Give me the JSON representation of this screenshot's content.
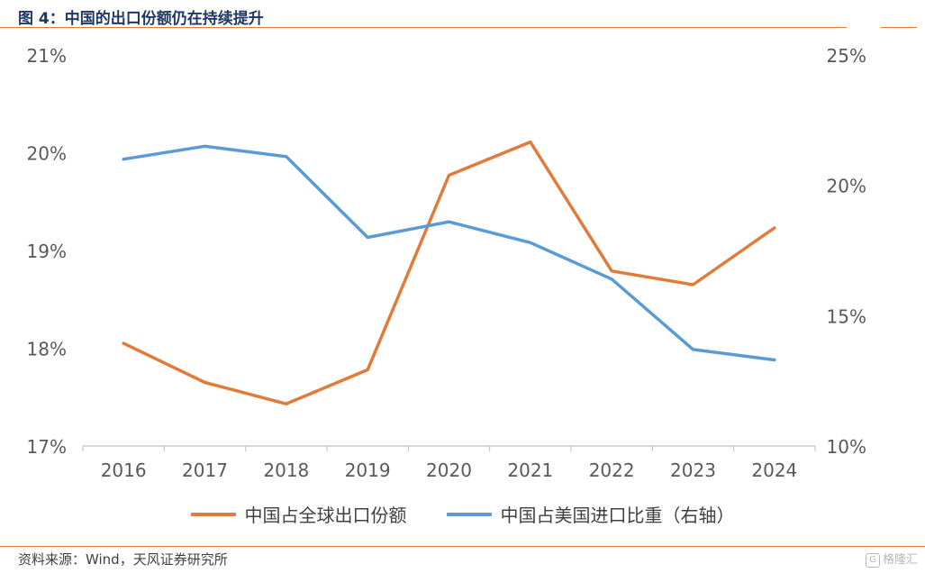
{
  "header": {
    "figure_title": "图 4：中国的出口份额仍在持续提升"
  },
  "footer": {
    "source": "资料来源：Wind，天风证券研究所",
    "watermark": "格隆汇",
    "watermark_mark": "G"
  },
  "colors": {
    "accent_rule": "#e07b39",
    "series_orange": "#e07b39",
    "series_blue": "#5b9bd5",
    "axis": "#bfbfbf"
  },
  "chart_data": {
    "type": "line",
    "title": "",
    "xlabel": "",
    "ylabel": "",
    "categories": [
      "2016",
      "2017",
      "2018",
      "2019",
      "2020",
      "2021",
      "2022",
      "2023",
      "2024"
    ],
    "y_left": {
      "ylim": [
        17,
        21
      ],
      "ticks": [
        17,
        18,
        19,
        20,
        21
      ],
      "tick_labels": [
        "17%",
        "18%",
        "19%",
        "20%",
        "21%"
      ]
    },
    "y_right": {
      "ylim": [
        10,
        25
      ],
      "ticks": [
        10,
        15,
        20,
        25
      ],
      "tick_labels": [
        "10%",
        "15%",
        "20%",
        "25%"
      ]
    },
    "series": [
      {
        "name": "中国占全球出口份额",
        "axis": "left",
        "color": "#e07b39",
        "values": [
          18.05,
          17.65,
          17.43,
          17.78,
          19.77,
          20.11,
          18.79,
          18.65,
          19.23
        ]
      },
      {
        "name": "中国占美国进口比重（右轴）",
        "axis": "right",
        "color": "#5b9bd5",
        "values": [
          21.0,
          21.5,
          21.1,
          18.0,
          18.6,
          17.8,
          16.4,
          13.7,
          13.3
        ]
      }
    ],
    "grid": false,
    "legend_position": "bottom"
  }
}
